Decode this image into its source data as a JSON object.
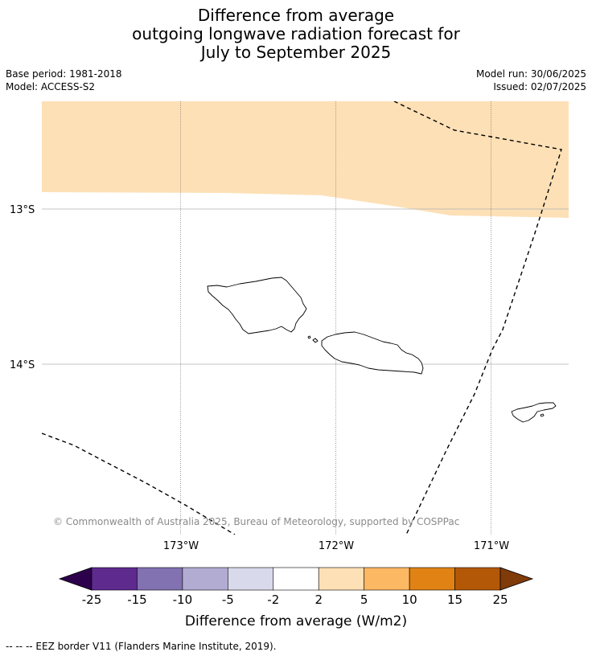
{
  "title": {
    "line1": "Difference from average",
    "line2": "outgoing longwave radiation forecast for",
    "line3": "July to September 2025"
  },
  "meta": {
    "base_period": "Base period: 1981-2018",
    "model": "Model: ACCESS-S2",
    "model_run": "Model run: 30/06/2025",
    "issued": "Issued: 02/07/2025"
  },
  "map": {
    "lat_labels": [
      "13°S",
      "14°S"
    ],
    "lon_labels": [
      "173°W",
      "172°W",
      "171°W"
    ],
    "copyright": "© Commonwealth of Australia 2025, Bureau of Meteorology, supported by COSPPac",
    "anomaly_fill_color": "#fde0b6"
  },
  "colorbar": {
    "title": "Difference from average (W/m2)",
    "ticks": [
      "-25",
      "-15",
      "-10",
      "-5",
      "-2",
      "2",
      "5",
      "10",
      "15",
      "25"
    ],
    "colors": [
      "#2d004b",
      "#5e2a8e",
      "#8272b2",
      "#b2abd2",
      "#d8daeb",
      "#ffffff",
      "#fee0b6",
      "#fdb863",
      "#e08214",
      "#b35806",
      "#7f3b08"
    ]
  },
  "footnote": "--  --  -- EEZ border V11 (Flanders Marine Institute, 2019)."
}
